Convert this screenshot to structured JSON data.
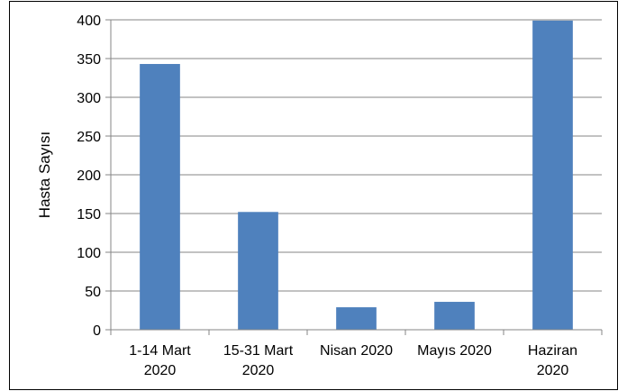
{
  "chart_data": {
    "type": "bar",
    "categories": [
      [
        "1-14 Mart",
        "2020"
      ],
      [
        "15-31 Mart",
        "2020"
      ],
      [
        "Nisan 2020"
      ],
      [
        "Mayıs 2020"
      ],
      [
        "Haziran",
        "2020"
      ]
    ],
    "values": [
      343,
      152,
      29,
      36,
      399
    ],
    "title": "",
    "xlabel": "",
    "ylabel": "Hasta Sayısı",
    "ylim": [
      0,
      400
    ],
    "yticks": [
      0,
      50,
      100,
      150,
      200,
      250,
      300,
      350,
      400
    ],
    "grid": true,
    "legend": "none",
    "colors": {
      "bar": "#4f81bd",
      "grid": "#868686",
      "axis": "#868686"
    }
  }
}
